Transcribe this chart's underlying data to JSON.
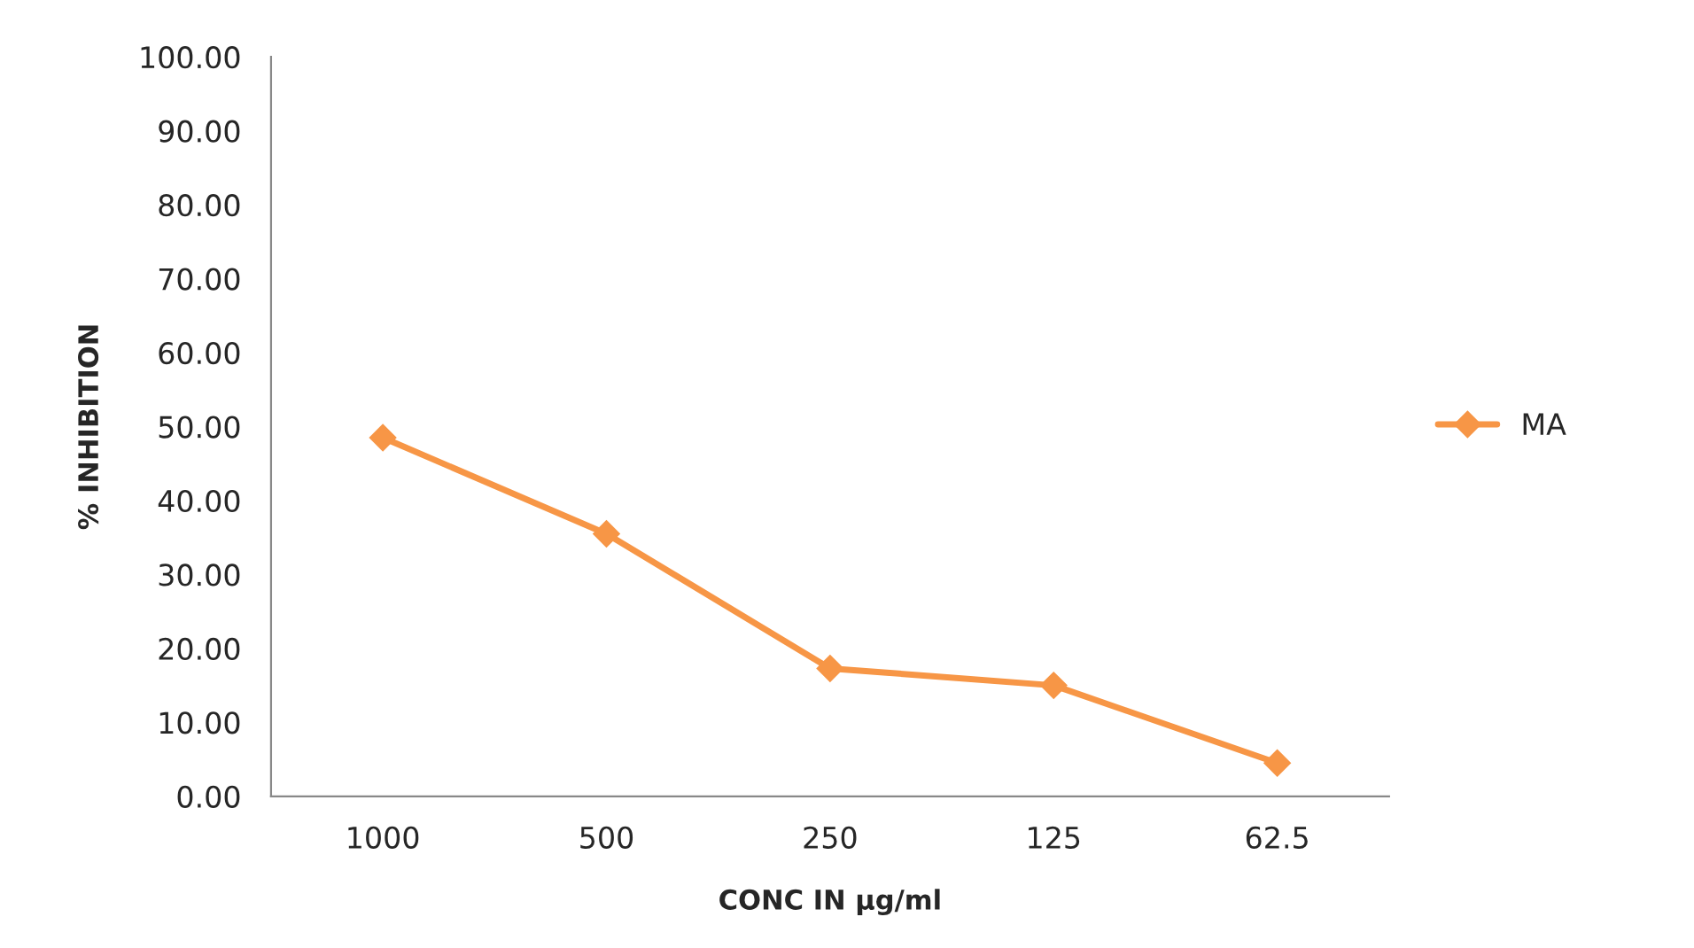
{
  "chart_data": {
    "type": "line",
    "xlabel": "CONC IN µg/ml",
    "ylabel": "% INHIBITION",
    "categories": [
      "1000",
      "500",
      "250",
      "125",
      "62.5"
    ],
    "series": [
      {
        "name": "MA",
        "color": "#f79646",
        "values": [
          48.5,
          35.5,
          17.3,
          15.0,
          4.5
        ]
      }
    ],
    "ylim": [
      0,
      100
    ],
    "yticks": [
      {
        "value": 0,
        "label": "0.00"
      },
      {
        "value": 10,
        "label": "10.00"
      },
      {
        "value": 20,
        "label": "20.00"
      },
      {
        "value": 30,
        "label": "30.00"
      },
      {
        "value": 40,
        "label": "40.00"
      },
      {
        "value": 50,
        "label": "50.00"
      },
      {
        "value": 60,
        "label": "60.00"
      },
      {
        "value": 70,
        "label": "70.00"
      },
      {
        "value": 80,
        "label": "80.00"
      },
      {
        "value": 90,
        "label": "90.00"
      },
      {
        "value": 100,
        "label": "100.00"
      }
    ],
    "grid": false,
    "legend": "right",
    "marker": "diamond",
    "line_style": "solid"
  }
}
